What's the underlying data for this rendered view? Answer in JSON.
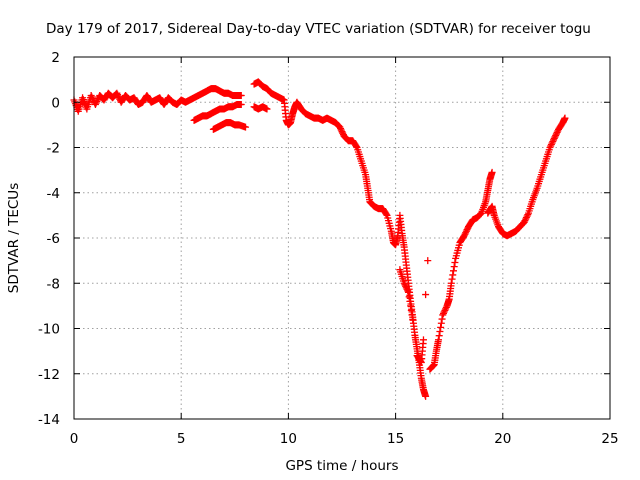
{
  "chart_data": {
    "type": "scatter",
    "title": "Day 179 of 2017, Sidereal Day-to-day VTEC variation (SDTVAR) for receiver togu",
    "xlabel": "GPS time / hours",
    "ylabel": "SDTVAR / TECUs",
    "xlim": [
      0,
      25
    ],
    "ylim": [
      -14,
      2
    ],
    "x_ticks": [
      "0",
      "5",
      "10",
      "15",
      "20",
      "25"
    ],
    "y_ticks": [
      "2",
      "0",
      "-2",
      "-4",
      "-6",
      "-8",
      "-10",
      "-12",
      "-14"
    ],
    "grid": true,
    "marker": "plus",
    "color": "#ff0000",
    "series": [
      {
        "points": [
          [
            0.0,
            0.1
          ],
          [
            0.2,
            -0.4
          ],
          [
            0.4,
            0.2
          ],
          [
            0.6,
            -0.3
          ],
          [
            0.8,
            0.3
          ],
          [
            1.0,
            -0.1
          ],
          [
            1.2,
            0.3
          ],
          [
            1.4,
            0.1
          ],
          [
            1.6,
            0.4
          ],
          [
            1.8,
            0.2
          ],
          [
            2.0,
            0.4
          ],
          [
            2.2,
            0.0
          ],
          [
            2.4,
            0.3
          ],
          [
            2.6,
            0.1
          ],
          [
            2.8,
            0.2
          ],
          [
            3.0,
            -0.1
          ],
          [
            3.2,
            0.0
          ],
          [
            3.4,
            0.3
          ],
          [
            3.6,
            0.0
          ],
          [
            3.8,
            0.1
          ],
          [
            4.0,
            0.2
          ],
          [
            4.2,
            -0.1
          ],
          [
            4.4,
            0.2
          ],
          [
            4.6,
            0.0
          ],
          [
            4.8,
            -0.1
          ],
          [
            5.0,
            0.1
          ],
          [
            5.2,
            0.0
          ],
          [
            5.4,
            0.1
          ],
          [
            5.6,
            0.2
          ],
          [
            5.8,
            0.3
          ],
          [
            6.0,
            0.4
          ],
          [
            6.2,
            0.5
          ],
          [
            6.4,
            0.6
          ],
          [
            6.6,
            0.6
          ],
          [
            6.8,
            0.5
          ],
          [
            7.0,
            0.4
          ],
          [
            7.2,
            0.4
          ],
          [
            7.4,
            0.3
          ],
          [
            7.6,
            0.3
          ],
          [
            7.8,
            0.3
          ],
          [
            5.6,
            -0.8
          ],
          [
            5.8,
            -0.7
          ],
          [
            6.0,
            -0.6
          ],
          [
            6.2,
            -0.6
          ],
          [
            6.4,
            -0.5
          ],
          [
            6.6,
            -0.4
          ],
          [
            6.8,
            -0.3
          ],
          [
            7.0,
            -0.3
          ],
          [
            7.2,
            -0.2
          ],
          [
            7.4,
            -0.2
          ],
          [
            7.6,
            -0.1
          ],
          [
            7.8,
            -0.1
          ],
          [
            6.5,
            -1.2
          ],
          [
            6.7,
            -1.1
          ],
          [
            6.9,
            -1.0
          ],
          [
            7.1,
            -0.9
          ],
          [
            7.3,
            -0.9
          ],
          [
            7.5,
            -1.0
          ],
          [
            7.7,
            -1.0
          ],
          [
            8.0,
            -1.1
          ],
          [
            8.4,
            -0.2
          ],
          [
            8.6,
            -0.3
          ],
          [
            8.8,
            -0.2
          ],
          [
            9.0,
            -0.3
          ],
          [
            8.4,
            0.8
          ],
          [
            8.6,
            0.9
          ],
          [
            8.8,
            0.7
          ],
          [
            9.0,
            0.6
          ],
          [
            9.2,
            0.4
          ],
          [
            9.4,
            0.3
          ],
          [
            9.6,
            0.2
          ],
          [
            9.8,
            0.1
          ],
          [
            9.9,
            -0.8
          ],
          [
            10.0,
            -1.0
          ],
          [
            10.1,
            -0.9
          ],
          [
            10.2,
            -0.5
          ],
          [
            10.3,
            -0.2
          ],
          [
            10.4,
            0.0
          ],
          [
            10.6,
            -0.3
          ],
          [
            10.8,
            -0.5
          ],
          [
            11.0,
            -0.6
          ],
          [
            11.2,
            -0.7
          ],
          [
            11.4,
            -0.7
          ],
          [
            11.6,
            -0.8
          ],
          [
            11.8,
            -0.7
          ],
          [
            12.0,
            -0.8
          ],
          [
            12.2,
            -0.9
          ],
          [
            12.4,
            -1.1
          ],
          [
            12.6,
            -1.5
          ],
          [
            12.8,
            -1.7
          ],
          [
            13.0,
            -1.7
          ],
          [
            13.2,
            -2.0
          ],
          [
            13.4,
            -2.6
          ],
          [
            13.6,
            -3.2
          ],
          [
            13.7,
            -3.8
          ],
          [
            13.8,
            -4.4
          ],
          [
            14.0,
            -4.6
          ],
          [
            14.2,
            -4.7
          ],
          [
            14.4,
            -4.7
          ],
          [
            14.6,
            -5.0
          ],
          [
            14.8,
            -5.7
          ],
          [
            14.9,
            -6.2
          ],
          [
            15.0,
            -6.3
          ],
          [
            15.1,
            -5.9
          ],
          [
            15.2,
            -5.0
          ],
          [
            15.3,
            -5.8
          ],
          [
            15.4,
            -6.4
          ],
          [
            15.5,
            -7.2
          ],
          [
            15.6,
            -8.0
          ],
          [
            15.7,
            -8.8
          ],
          [
            15.8,
            -9.5
          ],
          [
            15.9,
            -10.3
          ],
          [
            16.0,
            -10.9
          ],
          [
            16.1,
            -11.5
          ],
          [
            16.2,
            -12.2
          ],
          [
            16.3,
            -12.7
          ],
          [
            16.4,
            -13.0
          ],
          [
            15.2,
            -7.4
          ],
          [
            15.4,
            -8.0
          ],
          [
            15.6,
            -8.4
          ],
          [
            15.8,
            -9.6
          ],
          [
            16.0,
            -11.2
          ],
          [
            16.2,
            -11.5
          ],
          [
            16.3,
            -10.5
          ],
          [
            16.4,
            -8.5
          ],
          [
            16.5,
            -7.0
          ],
          [
            16.6,
            -11.8
          ],
          [
            16.8,
            -11.6
          ],
          [
            16.9,
            -11.0
          ],
          [
            17.0,
            -10.5
          ],
          [
            17.2,
            -9.4
          ],
          [
            17.4,
            -9.0
          ],
          [
            17.5,
            -8.7
          ],
          [
            17.6,
            -8.0
          ],
          [
            17.8,
            -6.9
          ],
          [
            18.0,
            -6.2
          ],
          [
            18.2,
            -5.9
          ],
          [
            18.4,
            -5.5
          ],
          [
            18.6,
            -5.2
          ],
          [
            18.8,
            -5.1
          ],
          [
            19.0,
            -4.9
          ],
          [
            19.2,
            -4.4
          ],
          [
            19.3,
            -3.9
          ],
          [
            19.4,
            -3.4
          ],
          [
            19.5,
            -3.1
          ],
          [
            19.3,
            -4.9
          ],
          [
            19.5,
            -4.6
          ],
          [
            19.6,
            -5.0
          ],
          [
            19.8,
            -5.5
          ],
          [
            20.0,
            -5.8
          ],
          [
            20.2,
            -5.9
          ],
          [
            20.4,
            -5.8
          ],
          [
            20.6,
            -5.7
          ],
          [
            20.8,
            -5.5
          ],
          [
            21.0,
            -5.3
          ],
          [
            21.2,
            -4.9
          ],
          [
            21.4,
            -4.3
          ],
          [
            21.6,
            -3.8
          ],
          [
            21.8,
            -3.2
          ],
          [
            22.0,
            -2.6
          ],
          [
            22.2,
            -2.0
          ],
          [
            22.4,
            -1.6
          ],
          [
            22.6,
            -1.2
          ],
          [
            22.8,
            -0.9
          ],
          [
            22.9,
            -0.7
          ]
        ]
      }
    ]
  }
}
